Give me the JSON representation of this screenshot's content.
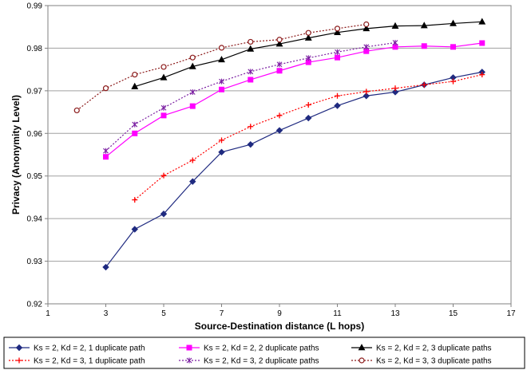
{
  "chart_data": {
    "type": "line",
    "xlabel": "Source-Destination distance (L hops)",
    "ylabel": "Privacy (Anonymity Level)",
    "xlim": [
      1,
      17
    ],
    "ylim": [
      0.92,
      0.99
    ],
    "xticks": [
      "1",
      "3",
      "5",
      "7",
      "9",
      "11",
      "13",
      "15",
      "17"
    ],
    "yticks": [
      "0.92",
      "0.93",
      "0.94",
      "0.95",
      "0.96",
      "0.97",
      "0.98",
      "0.99"
    ],
    "grid": "horizontal",
    "legend_position": "bottom",
    "series": [
      {
        "name": "Ks = 2, Kd = 2, 1 duplicate path",
        "color": "#1f2a80",
        "dash": "solid",
        "marker": "diamond",
        "x": [
          3,
          4,
          5,
          6,
          7,
          8,
          9,
          10,
          11,
          12,
          13,
          14,
          15,
          16
        ],
        "values": [
          0.9286,
          0.9375,
          0.9411,
          0.9487,
          0.9556,
          0.9574,
          0.9607,
          0.9636,
          0.9665,
          0.9688,
          0.9697,
          0.9714,
          0.9731,
          0.9744
        ]
      },
      {
        "name": "Ks = 2, Kd = 2, 2 duplicate paths",
        "color": "#ff00ff",
        "dash": "solid",
        "marker": "square",
        "x": [
          3,
          4,
          5,
          6,
          7,
          8,
          9,
          10,
          11,
          12,
          13,
          14,
          15,
          16
        ],
        "values": [
          0.9545,
          0.96,
          0.9642,
          0.9664,
          0.9703,
          0.9726,
          0.9747,
          0.9767,
          0.9778,
          0.9793,
          0.9803,
          0.9805,
          0.9803,
          0.9812
        ]
      },
      {
        "name": "Ks = 2, Kd = 2, 3 duplicate paths",
        "color": "#000000",
        "dash": "solid",
        "marker": "triangle",
        "x": [
          4,
          5,
          6,
          7,
          8,
          9,
          10,
          11,
          12,
          13,
          14,
          15,
          16
        ],
        "values": [
          0.971,
          0.9731,
          0.9757,
          0.9773,
          0.9798,
          0.981,
          0.9824,
          0.9837,
          0.9846,
          0.9852,
          0.9853,
          0.9858,
          0.9862
        ]
      },
      {
        "name": "Ks = 2, Kd = 3, 1 duplicate path",
        "color": "#ff0000",
        "dash": "dotted",
        "marker": "plus",
        "x": [
          4,
          5,
          6,
          7,
          8,
          9,
          10,
          11,
          12,
          13,
          14,
          15,
          16
        ],
        "values": [
          0.9444,
          0.9501,
          0.9537,
          0.9584,
          0.9616,
          0.9642,
          0.9667,
          0.9688,
          0.9698,
          0.9706,
          0.9714,
          0.9722,
          0.9738
        ]
      },
      {
        "name": "Ks = 2, Kd = 3, 2 duplicate paths",
        "color": "#7b1fa2",
        "dash": "dotted",
        "marker": "x",
        "x": [
          3,
          4,
          5,
          6,
          7,
          8,
          9,
          10,
          11,
          12,
          13
        ],
        "values": [
          0.9559,
          0.9621,
          0.966,
          0.9697,
          0.9722,
          0.9745,
          0.9762,
          0.9777,
          0.9791,
          0.9803,
          0.9813
        ]
      },
      {
        "name": "Ks = 2, Kd = 3, 3 duplicate paths",
        "color": "#8b1a1a",
        "dash": "dotted",
        "marker": "circle",
        "x": [
          2,
          3,
          4,
          5,
          6,
          7,
          8,
          9,
          10,
          11,
          12
        ],
        "values": [
          0.9654,
          0.9706,
          0.9738,
          0.9756,
          0.9778,
          0.9801,
          0.9815,
          0.982,
          0.9836,
          0.9846,
          0.9856
        ]
      }
    ]
  }
}
